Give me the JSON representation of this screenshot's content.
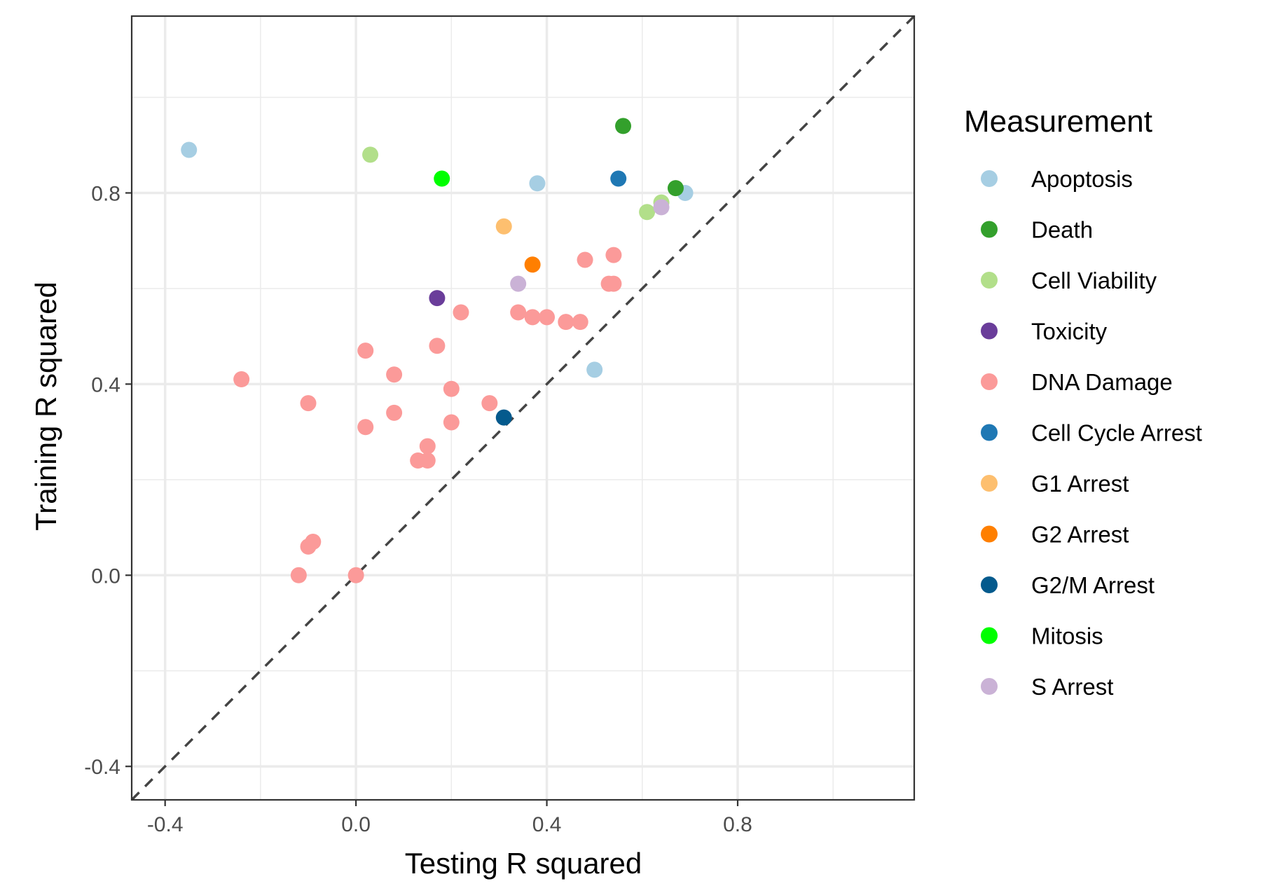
{
  "chart_data": {
    "type": "scatter",
    "xlabel": "Testing R squared",
    "ylabel": "Training R squared",
    "xlim": [
      -0.47,
      1.17
    ],
    "ylim": [
      -0.47,
      1.17
    ],
    "x_ticks": [
      -0.4,
      0.0,
      0.4,
      0.8
    ],
    "y_ticks": [
      -0.4,
      0.0,
      0.4,
      0.8
    ],
    "x_tick_labels": [
      "-0.4",
      "0.0",
      "0.4",
      "0.8"
    ],
    "y_tick_labels": [
      "-0.4",
      "0.0",
      "0.4",
      "0.8"
    ],
    "grid": true,
    "reference_line": "y = x, dashed",
    "legend": {
      "title": "Measurement",
      "placement": "right"
    },
    "series": [
      {
        "name": "Apoptosis",
        "color": "#a6cee3",
        "points": [
          [
            -0.35,
            0.89
          ],
          [
            0.38,
            0.82
          ],
          [
            0.69,
            0.8
          ],
          [
            0.5,
            0.43
          ]
        ]
      },
      {
        "name": "Death",
        "color": "#33a02c",
        "points": [
          [
            0.56,
            0.94
          ],
          [
            0.67,
            0.81
          ]
        ]
      },
      {
        "name": "Cell Viability",
        "color": "#b2df8a",
        "points": [
          [
            0.03,
            0.88
          ],
          [
            0.64,
            0.78
          ],
          [
            0.61,
            0.76
          ]
        ]
      },
      {
        "name": "Toxicity",
        "color": "#6a3d9a",
        "points": [
          [
            0.17,
            0.58
          ]
        ]
      },
      {
        "name": "DNA Damage",
        "color": "#fb9a99",
        "points": [
          [
            -0.24,
            0.41
          ],
          [
            -0.1,
            0.36
          ],
          [
            0.02,
            0.47
          ],
          [
            0.02,
            0.31
          ],
          [
            0.08,
            0.42
          ],
          [
            0.08,
            0.34
          ],
          [
            0.17,
            0.48
          ],
          [
            0.22,
            0.55
          ],
          [
            0.2,
            0.39
          ],
          [
            0.2,
            0.32
          ],
          [
            0.15,
            0.27
          ],
          [
            0.13,
            0.24
          ],
          [
            0.15,
            0.24
          ],
          [
            0.28,
            0.36
          ],
          [
            0.34,
            0.55
          ],
          [
            0.37,
            0.54
          ],
          [
            0.4,
            0.54
          ],
          [
            0.44,
            0.53
          ],
          [
            0.47,
            0.53
          ],
          [
            0.48,
            0.66
          ],
          [
            0.54,
            0.67
          ],
          [
            0.53,
            0.61
          ],
          [
            0.54,
            0.61
          ],
          [
            -0.1,
            0.06
          ],
          [
            -0.09,
            0.07
          ],
          [
            -0.12,
            0.0
          ],
          [
            0.0,
            0.0
          ]
        ]
      },
      {
        "name": "Cell Cycle Arrest",
        "color": "#1f78b4",
        "points": [
          [
            0.55,
            0.83
          ]
        ]
      },
      {
        "name": "G1 Arrest",
        "color": "#fdbf6f",
        "points": [
          [
            0.31,
            0.73
          ]
        ]
      },
      {
        "name": "G2 Arrest",
        "color": "#ff7f00",
        "points": [
          [
            0.37,
            0.65
          ]
        ]
      },
      {
        "name": "G2/M Arrest",
        "color": "#045a8d",
        "points": [
          [
            0.31,
            0.33
          ]
        ]
      },
      {
        "name": "Mitosis",
        "color": "#00ff00",
        "points": [
          [
            0.18,
            0.83
          ]
        ]
      },
      {
        "name": "S Arrest",
        "color": "#cab2d6",
        "points": [
          [
            0.64,
            0.77
          ],
          [
            0.34,
            0.61
          ]
        ]
      }
    ]
  }
}
